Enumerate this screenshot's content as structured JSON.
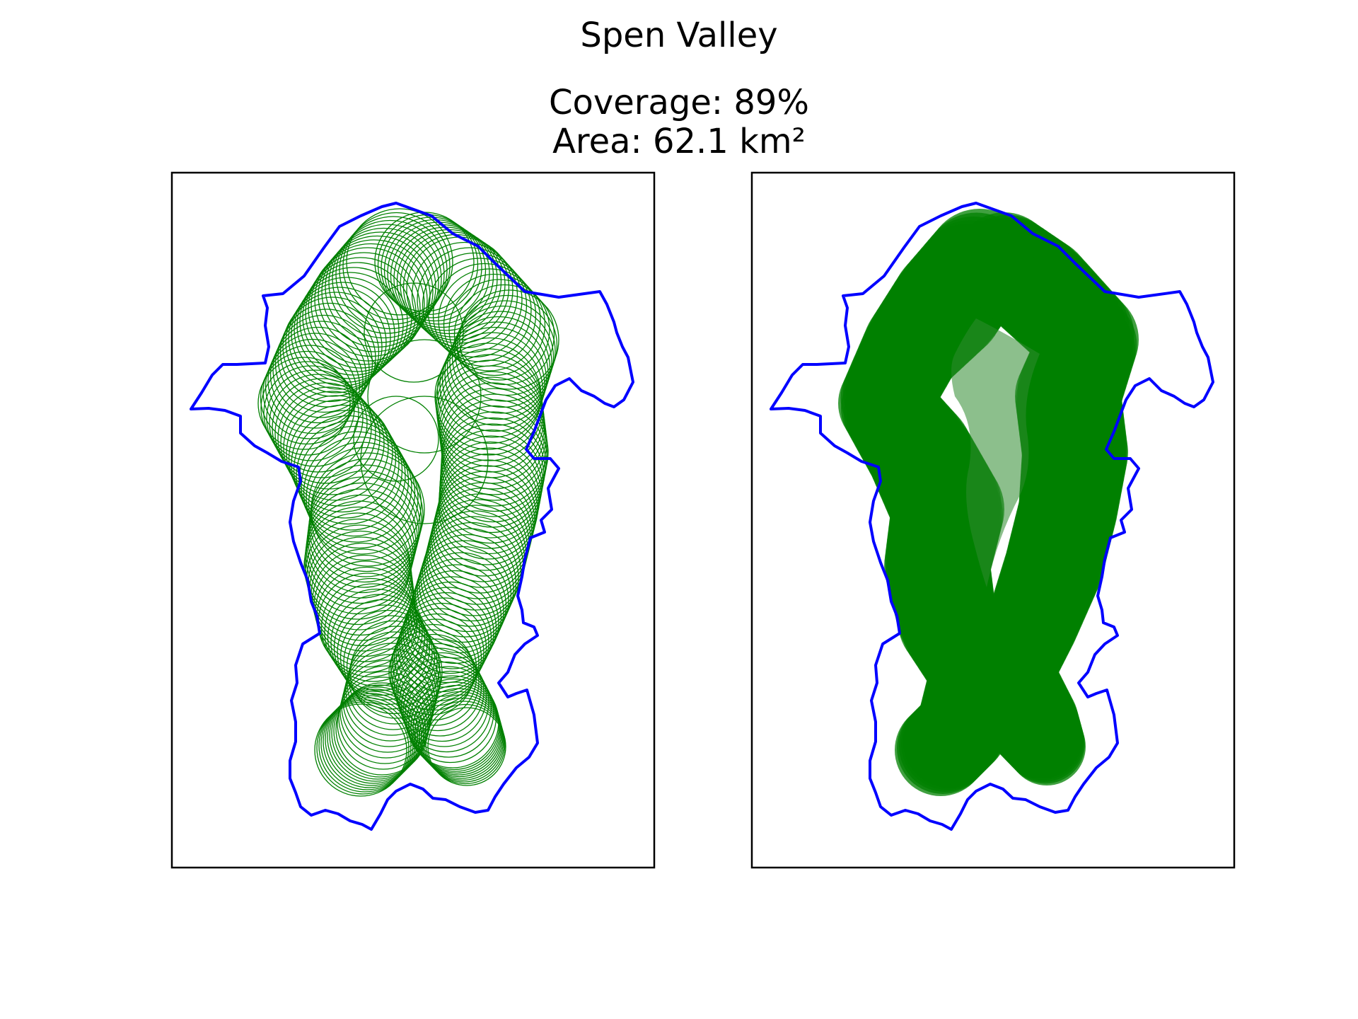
{
  "figure": {
    "title": "Spen Valley",
    "coverage_text": "Coverage: 89%",
    "area_text": "Area: 62.1 km²"
  },
  "colors": {
    "boundary": "#0000ff",
    "coverage": "#008000",
    "frame": "#000000",
    "background": "#ffffff"
  },
  "panels": [
    {
      "name": "coverage-circles-outline",
      "style": "outline"
    },
    {
      "name": "coverage-circles-filled",
      "style": "filled"
    }
  ]
}
